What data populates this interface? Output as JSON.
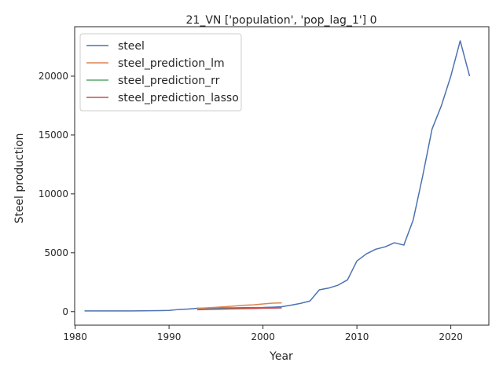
{
  "chart_data": {
    "type": "line",
    "title": "21_VN ['population', 'pop_lag_1'] 0",
    "xlabel": "Year",
    "ylabel": "Steel production",
    "xlim": [
      1979.95,
      2024.05
    ],
    "ylim": [
      -1150,
      24200
    ],
    "xticks": [
      1980,
      1990,
      2000,
      2010,
      2020
    ],
    "yticks": [
      0,
      5000,
      10000,
      15000,
      20000
    ],
    "grid": false,
    "legend_position": "top-left",
    "series": [
      {
        "name": "steel",
        "color": "#4c72b0",
        "x": [
          1981,
          1982,
          1983,
          1984,
          1985,
          1986,
          1987,
          1988,
          1989,
          1990,
          1991,
          1992,
          1993,
          1994,
          1995,
          1996,
          1997,
          1998,
          1999,
          2000,
          2001,
          2002,
          2003,
          2004,
          2005,
          2006,
          2007,
          2008,
          2009,
          2010,
          2011,
          2012,
          2013,
          2014,
          2015,
          2016,
          2017,
          2018,
          2019,
          2020,
          2021,
          2022
        ],
        "y": [
          60,
          60,
          60,
          60,
          60,
          60,
          70,
          75,
          80,
          100,
          180,
          220,
          280,
          300,
          310,
          320,
          320,
          330,
          340,
          350,
          380,
          420,
          550,
          700,
          900,
          1850,
          2000,
          2250,
          2700,
          4300,
          4900,
          5300,
          5500,
          5850,
          5650,
          7800,
          11500,
          15500,
          17500,
          20000,
          23000,
          20000
        ]
      },
      {
        "name": "steel_prediction_lm",
        "color": "#dd8452",
        "x": [
          1993,
          1994,
          1995,
          1996,
          1997,
          1998,
          1999,
          2000,
          2001,
          2002
        ],
        "y": [
          280,
          320,
          370,
          420,
          480,
          540,
          580,
          650,
          720,
          740
        ]
      },
      {
        "name": "steel_prediction_rr",
        "color": "#55a868",
        "x": [
          1993,
          1994,
          1995,
          1996,
          1997,
          1998,
          1999,
          2000,
          2001,
          2002
        ],
        "y": [
          180,
          200,
          220,
          240,
          255,
          270,
          285,
          300,
          315,
          330
        ]
      },
      {
        "name": "steel_prediction_lasso",
        "color": "#c44e52",
        "x": [
          1993,
          1994,
          1995,
          1996,
          1997,
          1998,
          1999,
          2000,
          2001,
          2002
        ],
        "y": [
          160,
          180,
          200,
          220,
          240,
          255,
          270,
          290,
          305,
          320
        ]
      }
    ]
  }
}
